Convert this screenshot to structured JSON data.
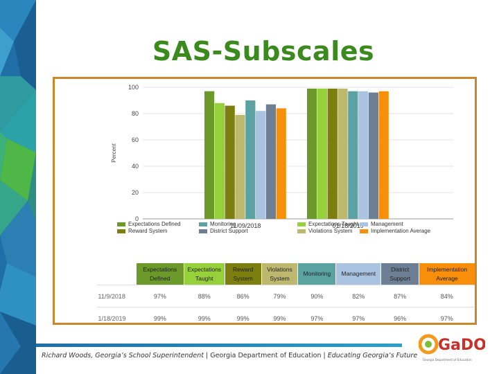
{
  "slide": {
    "title": "SAS-Subscales"
  },
  "footer": {
    "left": "Richard Woods, Georgia’s School Superintendent",
    "sep": " | ",
    "middle": "Georgia Department of Education",
    "right": "Educating Georgia’s Future",
    "logo_text": "GaDOE",
    "logo_subtext": "Georgia Department of Education"
  },
  "chart_data": {
    "type": "bar",
    "ylabel": "Percent",
    "ylim": [
      0,
      100
    ],
    "yticks": [
      0,
      20,
      40,
      60,
      80,
      100
    ],
    "grid": true,
    "categories": [
      "11/09/2018",
      "01/18/2019"
    ],
    "series": [
      {
        "name": "Expectations Defined",
        "color": "#6b9a2b",
        "values": [
          97,
          99
        ]
      },
      {
        "name": "Expectations Taught",
        "color": "#96d13b",
        "values": [
          88,
          99
        ]
      },
      {
        "name": "Reward System",
        "color": "#7d7e10",
        "values": [
          86,
          99
        ]
      },
      {
        "name": "Violations System",
        "color": "#bdb86e",
        "values": [
          79,
          99
        ]
      },
      {
        "name": "Monitoring",
        "color": "#5ba3a3",
        "values": [
          90,
          97
        ]
      },
      {
        "name": "Management",
        "color": "#a9c3e0",
        "values": [
          82,
          97
        ]
      },
      {
        "name": "District Support",
        "color": "#6f7f93",
        "values": [
          87,
          96
        ]
      },
      {
        "name": "Implementation Average",
        "color": "#f78f0b",
        "values": [
          84,
          97
        ]
      }
    ],
    "legend_position": "bottom"
  },
  "table": {
    "headers": [
      [
        "Expectations",
        "Defined"
      ],
      [
        "Expectations",
        "Taught"
      ],
      [
        "Reward",
        "System"
      ],
      [
        "Violations",
        "System"
      ],
      [
        "Monitoring",
        ""
      ],
      [
        "Management",
        ""
      ],
      [
        "District",
        "Support"
      ],
      [
        "Implementation",
        "Average"
      ]
    ],
    "header_colors": [
      "#6b9a2b",
      "#96d13b",
      "#7d7e10",
      "#bdb86e",
      "#5ba3a3",
      "#a9c3e0",
      "#6f7f93",
      "#f78f0b"
    ],
    "rows": [
      {
        "label": "11/9/2018",
        "values": [
          "97%",
          "88%",
          "86%",
          "79%",
          "90%",
          "82%",
          "87%",
          "84%"
        ]
      },
      {
        "label": "1/18/2019",
        "values": [
          "99%",
          "99%",
          "99%",
          "99%",
          "97%",
          "97%",
          "96%",
          "97%"
        ]
      }
    ]
  }
}
